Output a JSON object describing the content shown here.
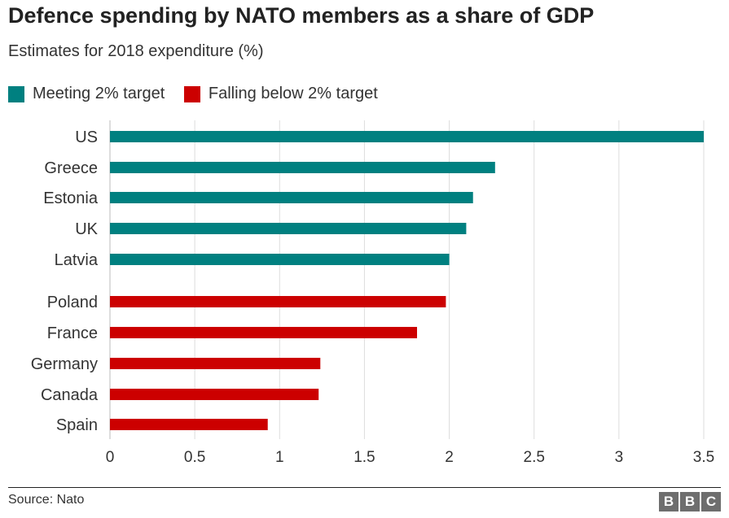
{
  "title": "Defence spending by NATO members as a share of GDP",
  "subtitle": "Estimates for 2018 expenditure (%)",
  "legend": [
    {
      "label": "Meeting 2% target",
      "color": "#008080"
    },
    {
      "label": "Falling below 2% target",
      "color": "#cc0000"
    }
  ],
  "source": "Source: Nato",
  "logo": [
    "B",
    "B",
    "C"
  ],
  "chart_data": {
    "type": "bar",
    "orientation": "horizontal",
    "title": "Defence spending by NATO members as a share of GDP",
    "subtitle": "Estimates for 2018 expenditure (%)",
    "xlim": [
      0,
      3.5
    ],
    "xticks": [
      "0",
      "0.5",
      "1",
      "1.5",
      "2",
      "2.5",
      "3",
      "3.5"
    ],
    "grid": "vertical",
    "legend_position": "top-left",
    "series": [
      {
        "name": "Meeting 2% target",
        "color": "#008080",
        "categories": [
          "US",
          "Greece",
          "Estonia",
          "UK",
          "Latvia"
        ],
        "values": [
          3.5,
          2.27,
          2.14,
          2.1,
          2.0
        ]
      },
      {
        "name": "Falling below 2% target",
        "color": "#cc0000",
        "categories": [
          "Poland",
          "France",
          "Germany",
          "Canada",
          "Spain"
        ],
        "values": [
          1.98,
          1.81,
          1.24,
          1.23,
          0.93
        ]
      }
    ]
  }
}
